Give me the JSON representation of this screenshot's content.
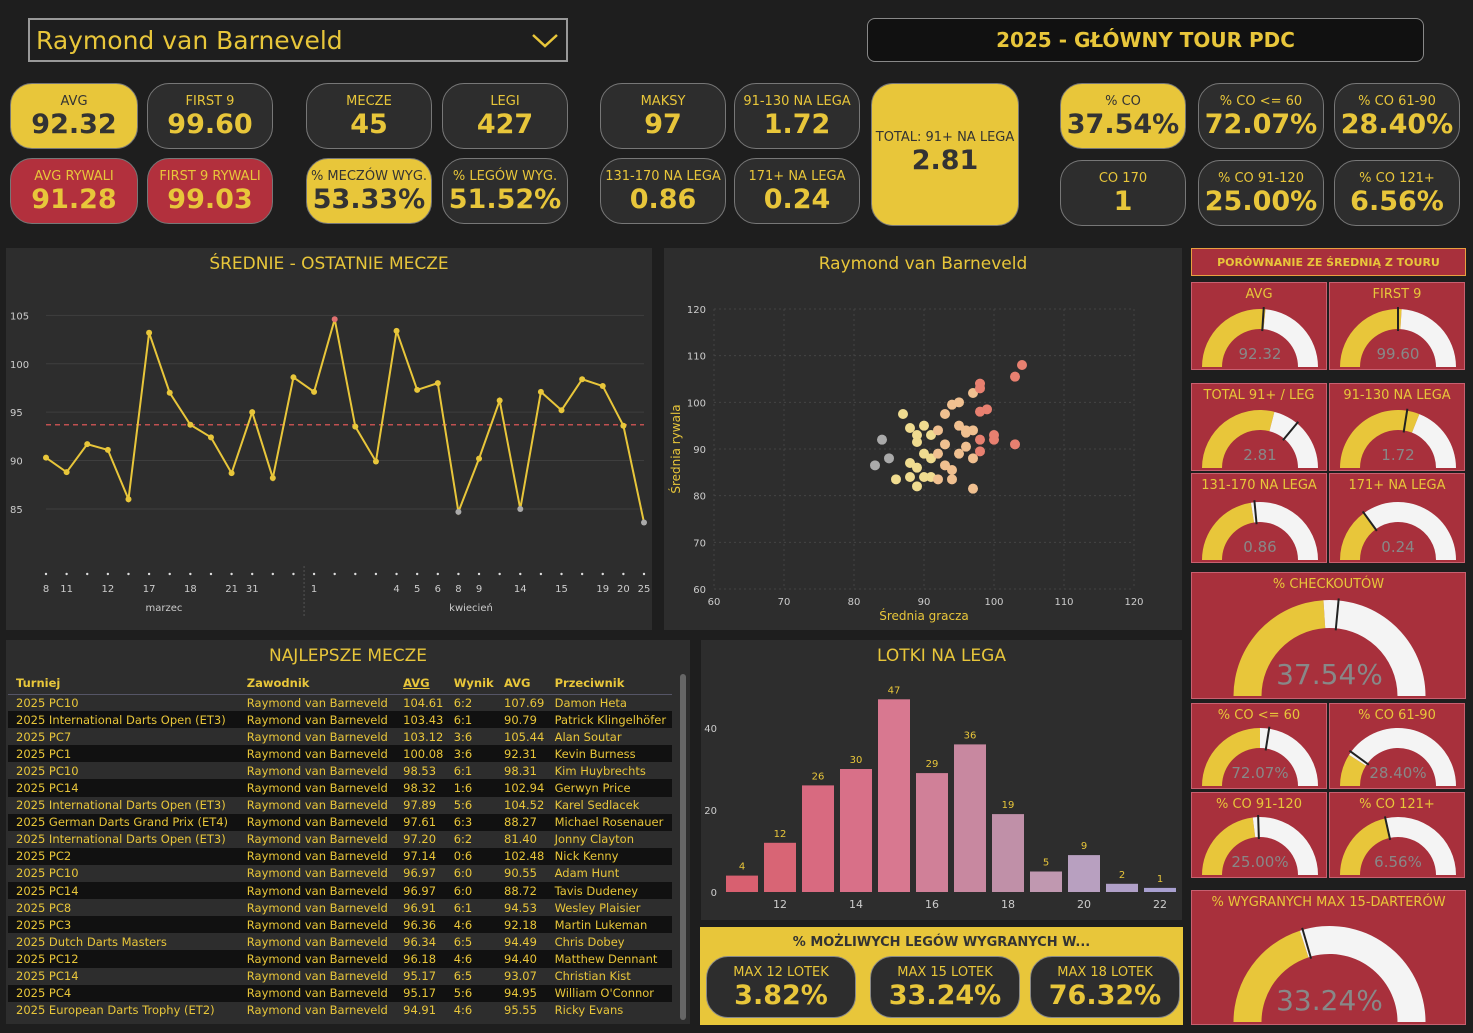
{
  "player": "Raymond van Barneveld",
  "tour_title": "2025 - GŁÓWNY TOUR PDC",
  "kpis": {
    "avg": {
      "label": "AVG",
      "value": "92.32"
    },
    "first9": {
      "label": "FIRST 9",
      "value": "99.60"
    },
    "avg_opp": {
      "label": "AVG RYWALI",
      "value": "91.28"
    },
    "first9_opp": {
      "label": "FIRST 9 RYWALI",
      "value": "99.03"
    },
    "matches": {
      "label": "MECZE",
      "value": "45"
    },
    "legs": {
      "label": "LEGI",
      "value": "427"
    },
    "match_win": {
      "label": "% MECZÓW WYG.",
      "value": "53.33%"
    },
    "leg_win": {
      "label": "% LEGÓW WYG.",
      "value": "51.52%"
    },
    "max": {
      "label": "MAKSY",
      "value": "97"
    },
    "t91_130": {
      "label": "91-130 NA LEGA",
      "value": "1.72"
    },
    "t131_170": {
      "label": "131-170 NA LEGA",
      "value": "0.86"
    },
    "t171": {
      "label": "171+ NA LEGA",
      "value": "0.24"
    },
    "total91": {
      "label": "TOTAL: 91+ NA LEGA",
      "value": "2.81"
    },
    "co": {
      "label": "% CO",
      "value": "37.54%"
    },
    "co60": {
      "label": "% CO <= 60",
      "value": "72.07%"
    },
    "co61": {
      "label": "% CO 61-90",
      "value": "28.40%"
    },
    "co170": {
      "label": "CO 170",
      "value": "1"
    },
    "co91": {
      "label": "% CO 91-120",
      "value": "25.00%"
    },
    "co121": {
      "label": "% CO 121+",
      "value": "6.56%"
    }
  },
  "line_chart": {
    "title": "ŚREDNIE - OSTATNIE MECZE",
    "yticks": [
      "105",
      "100",
      "95",
      "90",
      "85"
    ],
    "xticks": [
      "8",
      "11",
      "12",
      "18",
      "21",
      "31",
      "1",
      "4",
      "5",
      "6",
      "8",
      "9",
      "14",
      "15",
      "19",
      "20",
      "25",
      "17"
    ],
    "months": [
      "marzec",
      "kwiecień"
    ]
  },
  "chart_data": [
    {
      "type": "line",
      "title": "ŚREDNIE - OSTATNIE MECZE",
      "ylim": [
        82,
        107
      ],
      "values": [
        90.3,
        88.8,
        91.7,
        91.1,
        86,
        103.2,
        97,
        93.7,
        92.4,
        88.7,
        95,
        88.2,
        98.6,
        97.1,
        104.6,
        93.5,
        89.9,
        103.4,
        97.3,
        98,
        84.7,
        90.2,
        96.2,
        85,
        97.1,
        95.2,
        98.4,
        97.7,
        93.6,
        83.6
      ],
      "reference": 93.7
    },
    {
      "type": "scatter",
      "title": "Raymond van Barneveld",
      "xlabel": "Średnia gracza",
      "ylabel": "Średnia rywala",
      "xlim": [
        60,
        120
      ],
      "ylim": [
        60,
        120
      ],
      "xticks": [
        "60",
        "70",
        "80",
        "90",
        "100",
        "110",
        "120"
      ],
      "yticks": [
        "120",
        "110",
        "100",
        "90",
        "80",
        "70",
        "60"
      ],
      "x": [
        83,
        84,
        86,
        87,
        88,
        88,
        89,
        89,
        89,
        90,
        90,
        90,
        91,
        91,
        91,
        92,
        92,
        92,
        93,
        93,
        94,
        94,
        94,
        95,
        95,
        95,
        96,
        96,
        96,
        97,
        97,
        97,
        97,
        98,
        98,
        98,
        98,
        98,
        99,
        100,
        100,
        103,
        103,
        104,
        85,
        88,
        89,
        93
      ],
      "y": [
        86.5,
        92,
        83.5,
        97.5,
        84,
        87,
        93,
        82,
        86,
        89,
        84,
        95,
        93,
        88,
        84,
        94,
        89,
        83.5,
        97.5,
        91,
        99.5,
        83.5,
        85.5,
        100,
        95,
        89,
        94,
        93.5,
        90.5,
        94,
        88,
        102,
        81.5,
        98,
        104,
        103,
        89.5,
        92,
        98.5,
        92,
        93,
        91,
        105.5,
        108,
        88,
        94.5,
        91.5,
        86.5
      ]
    },
    {
      "type": "bar",
      "title": "LOTKI NA LEGA",
      "categories": [
        "",
        "12",
        "",
        "14",
        "",
        "16",
        "",
        "18",
        "",
        "20",
        "",
        "22"
      ],
      "values": [
        4,
        12,
        26,
        30,
        47,
        29,
        36,
        19,
        5,
        9,
        2,
        1
      ],
      "yticks": [
        "40",
        "20",
        "0"
      ]
    }
  ],
  "table": {
    "title": "NAJLEPSZE MECZE",
    "headers": [
      "Turniej",
      "Zawodnik",
      "AVG",
      "Wynik",
      "AVG",
      "Przeciwnik"
    ],
    "rows": [
      [
        "2025 PC10",
        "Raymond van Barneveld",
        "104.61",
        "6:2",
        "107.69",
        "Damon Heta"
      ],
      [
        "2025 International Darts Open (ET3)",
        "Raymond van Barneveld",
        "103.43",
        "6:1",
        "90.79",
        "Patrick Klingelhöfer"
      ],
      [
        "2025 PC7",
        "Raymond van Barneveld",
        "103.12",
        "3:6",
        "105.44",
        "Alan Soutar"
      ],
      [
        "2025 PC1",
        "Raymond van Barneveld",
        "100.08",
        "3:6",
        "92.31",
        "Kevin Burness"
      ],
      [
        "2025 PC10",
        "Raymond van Barneveld",
        "98.53",
        "6:1",
        "98.31",
        "Kim Huybrechts"
      ],
      [
        "2025 PC14",
        "Raymond van Barneveld",
        "98.32",
        "1:6",
        "102.94",
        "Gerwyn Price"
      ],
      [
        "2025 International Darts Open (ET3)",
        "Raymond van Barneveld",
        "97.89",
        "5:6",
        "104.52",
        "Karel Sedlacek"
      ],
      [
        "2025 German Darts Grand Prix (ET4)",
        "Raymond van Barneveld",
        "97.61",
        "6:3",
        "88.27",
        "Michael Rosenauer"
      ],
      [
        "2025 International Darts Open (ET3)",
        "Raymond van Barneveld",
        "97.20",
        "6:2",
        "81.40",
        "Jonny Clayton"
      ],
      [
        "2025 PC2",
        "Raymond van Barneveld",
        "97.14",
        "0:6",
        "102.48",
        "Nick Kenny"
      ],
      [
        "2025 PC10",
        "Raymond van Barneveld",
        "96.97",
        "6:0",
        "90.55",
        "Adam Hunt"
      ],
      [
        "2025 PC14",
        "Raymond van Barneveld",
        "96.97",
        "6:0",
        "88.72",
        "Tavis Dudeney"
      ],
      [
        "2025 PC8",
        "Raymond van Barneveld",
        "96.91",
        "6:1",
        "94.53",
        "Wesley Plaisier"
      ],
      [
        "2025 PC3",
        "Raymond van Barneveld",
        "96.36",
        "4:6",
        "92.18",
        "Martin Lukeman"
      ],
      [
        "2025 Dutch Darts Masters",
        "Raymond van Barneveld",
        "96.34",
        "6:5",
        "94.49",
        "Chris Dobey"
      ],
      [
        "2025 PC12",
        "Raymond van Barneveld",
        "96.18",
        "4:6",
        "94.40",
        "Matthew Dennant"
      ],
      [
        "2025 PC14",
        "Raymond van Barneveld",
        "95.17",
        "6:5",
        "93.07",
        "Christian Kist"
      ],
      [
        "2025 PC4",
        "Raymond van Barneveld",
        "95.17",
        "5:6",
        "94.95",
        "William O'Connor"
      ],
      [
        "2025 European Darts Trophy (ET2)",
        "Raymond van Barneveld",
        "94.91",
        "4:6",
        "95.55",
        "Ricky Evans"
      ]
    ]
  },
  "lotki": {
    "header": "% MOŻLIWYCH LEGÓW WYGRANYCH W...",
    "items": [
      {
        "label": "MAX 12 LOTEK",
        "value": "3.82%"
      },
      {
        "label": "MAX 15 LOTEK",
        "value": "33.24%"
      },
      {
        "label": "MAX 18 LOTEK",
        "value": "76.32%"
      }
    ]
  },
  "comparison": {
    "header": "PORÓWNANIE ZE ŚREDNIĄ Z TOURU",
    "gauges": [
      {
        "id": "g1",
        "label": "AVG",
        "value": "92.32",
        "fill": 0.53,
        "ref": 0.52
      },
      {
        "id": "g2",
        "label": "FIRST 9",
        "value": "99.60",
        "fill": 0.52,
        "ref": 0.5
      },
      {
        "id": "g3",
        "label": "TOTAL 91+ / LEG",
        "value": "2.81",
        "fill": 0.58,
        "ref": 0.72
      },
      {
        "id": "g4",
        "label": "91-130 NA LEGA",
        "value": "1.72",
        "fill": 0.62,
        "ref": 0.55
      },
      {
        "id": "g5",
        "label": "131-170 NA LEGA",
        "value": "0.86",
        "fill": 0.45,
        "ref": 0.47
      },
      {
        "id": "g6",
        "label": "171+ NA LEGA",
        "value": "0.24",
        "fill": 0.3,
        "ref": 0.3
      },
      {
        "id": "g7",
        "label": "% CHECKOUTÓW",
        "value": "37.54%",
        "fill": 0.48,
        "ref": 0.53
      },
      {
        "id": "g8",
        "label": "% CO <= 60",
        "value": "72.07%",
        "fill": 0.5,
        "ref": 0.55
      },
      {
        "id": "g9",
        "label": "% CO 61-90",
        "value": "28.40%",
        "fill": 0.18,
        "ref": 0.2
      },
      {
        "id": "g10",
        "label": "% CO 91-120",
        "value": "25.00%",
        "fill": 0.46,
        "ref": 0.49
      },
      {
        "id": "g11",
        "label": "% CO 121+",
        "value": "6.56%",
        "fill": 0.43,
        "ref": 0.43
      },
      {
        "id": "g12",
        "label": "% WYGRANYCH MAX 15-DARTERÓW",
        "value": "33.24%",
        "fill": 0.4,
        "ref": 0.41
      }
    ]
  },
  "colors": {
    "yellow": "#e8c63a",
    "red": "#a8303c",
    "panel": "#2d2d2d"
  }
}
